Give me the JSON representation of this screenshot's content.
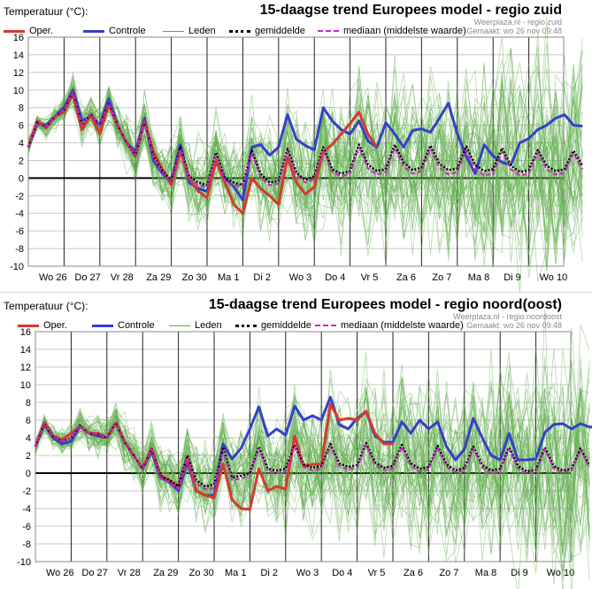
{
  "colors": {
    "oper": "#d43a2f",
    "controle": "#3540c8",
    "leden": "#5aaa48",
    "mean": "#000000",
    "median": "#cc22cc",
    "grid": "#c8c8c8"
  },
  "chart_data": [
    {
      "type": "line",
      "title": "15-daagse trend Europees model - regio zuid",
      "site": "Weerplaza.nl - regio zuid",
      "generated": "Gemaakt: wo 26 nov 09:48",
      "ylabel": "Temperatuur (°C):",
      "ylim": [
        -10,
        16
      ],
      "yticks": [
        -10,
        -8,
        -6,
        -4,
        -2,
        0,
        2,
        4,
        6,
        8,
        10,
        12,
        14,
        16
      ],
      "grid": true,
      "legend_position": "top",
      "legend": [
        "Oper.",
        "Controle",
        "Leden",
        "gemiddelde",
        "mediaan (middelste waarde)"
      ],
      "xticks": [
        "Wo 26",
        "Do 27",
        "Vr 28",
        "Za 29",
        "Zo 30",
        "Ma 1",
        "Di 2",
        "Wo 3",
        "Do 4",
        "Vr 5",
        "Za 6",
        "Zo 7",
        "Ma 8",
        "Di 9",
        "Wo 10"
      ],
      "x_step_hours": 6,
      "series": [
        {
          "name": "Oper.",
          "values": [
            3.5,
            6.5,
            5.7,
            7,
            7.5,
            9.5,
            5.5,
            7.2,
            5,
            8.3,
            6,
            4,
            2.5,
            6.5,
            3,
            1,
            -0.8,
            3,
            0,
            -1.5,
            -2.2,
            2,
            -0.5,
            -3,
            -4,
            0,
            -1.2,
            -2,
            -3,
            2.3,
            -0.5,
            -1.8,
            -1,
            3,
            3.8,
            5,
            6.2,
            7.5,
            5,
            3.5
          ]
        },
        {
          "name": "Controle",
          "values": [
            3.5,
            6.2,
            6,
            7,
            8,
            10,
            6.5,
            7,
            6,
            9,
            6,
            4,
            3,
            6.8,
            2,
            0.5,
            -0.5,
            3.8,
            -0.5,
            -1.2,
            -1.5,
            1.8,
            0,
            -1,
            -2.5,
            3.5,
            3.8,
            2.6,
            3.5,
            7.2,
            4.4,
            3.7,
            3.2,
            8,
            6.5,
            5.5,
            5,
            6.5,
            4.2,
            3.5,
            6.3,
            5,
            3.5,
            5.4,
            5.6,
            5.2,
            6.8,
            8.5,
            5,
            2.5,
            0.5,
            3.8,
            2.5,
            1.8,
            1.5,
            4,
            4.5,
            5.5,
            6,
            6.8,
            7.2,
            6,
            5.9
          ]
        },
        {
          "name": "gemiddelde",
          "values": [
            3.5,
            6.3,
            5.8,
            7,
            7.8,
            9.8,
            6,
            7.3,
            6,
            8.5,
            6,
            4,
            2.5,
            6.4,
            2.5,
            0.8,
            -0.3,
            3.5,
            0.2,
            -0.5,
            -0.8,
            2.9,
            0,
            -0.5,
            -0.8,
            3.1,
            0.5,
            -0.5,
            -0.3,
            3.3,
            0.6,
            -0.2,
            0.2,
            3.5,
            1,
            0.5,
            0.8,
            3.8,
            1.5,
            0.8,
            1,
            3.8,
            1.8,
            0.9,
            1.2,
            3.7,
            1.6,
            0.9,
            1.1,
            3.6,
            1.5,
            0.8,
            1,
            3.4,
            1.4,
            0.7,
            0.9,
            3.2,
            1.4,
            0.8,
            1,
            3.1,
            1.4
          ]
        },
        {
          "name": "mediaan (middelste waarde)",
          "values": [
            3.5,
            6.3,
            5.8,
            7,
            7.8,
            9.8,
            6,
            7.3,
            6,
            8.5,
            6,
            4,
            2.5,
            6.4,
            2.3,
            0.6,
            -0.5,
            3.3,
            0,
            -0.8,
            -1,
            2.6,
            -0.3,
            -0.8,
            -1,
            2.8,
            0.1,
            -0.8,
            -0.6,
            3,
            0.3,
            -0.5,
            -0.1,
            3.2,
            0.7,
            0.2,
            0.5,
            3.5,
            1.1,
            0.4,
            0.7,
            3.4,
            1.3,
            0.5,
            0.8,
            3.3,
            1.2,
            0.4,
            0.7,
            3.2,
            1.1,
            0.3,
            0.5,
            3,
            1,
            0.3,
            0.5,
            2.9,
            1,
            0.4,
            0.6,
            2.8,
            1
          ]
        }
      ]
    },
    {
      "type": "line",
      "title": "15-daagse trend Europees model - regio noord(oost)",
      "site": "Weerplaza.nl - regio noordoost",
      "generated": "Gemaakt: wo 26 nov 09:48",
      "ylabel": "Temperatuur (°C):",
      "ylim": [
        -10,
        16
      ],
      "yticks": [
        -10,
        -8,
        -6,
        -4,
        -2,
        0,
        2,
        4,
        6,
        8,
        10,
        12,
        14,
        16
      ],
      "grid": true,
      "legend_position": "top",
      "legend": [
        "Oper.",
        "Controle",
        "Leden",
        "gemiddelde",
        "mediaan (middelste waarde)"
      ],
      "xticks": [
        "Wo 26",
        "Do 27",
        "Vr 28",
        "Za 29",
        "Zo 30",
        "Ma 1",
        "Di 2",
        "Wo 3",
        "Do 4",
        "Vr 5",
        "Za 6",
        "Zo 7",
        "Ma 8",
        "Di 9",
        "Wo 10"
      ],
      "x_step_hours": 6,
      "series": [
        {
          "name": "Oper.",
          "values": [
            3,
            5.7,
            4.2,
            3.8,
            4.5,
            5.3,
            4.5,
            4.5,
            4,
            5.7,
            3.5,
            2,
            0.5,
            2.8,
            -0.3,
            -0.8,
            -1.5,
            1.8,
            -2,
            -2.5,
            -2.8,
            1,
            -3,
            -4,
            -4.1,
            0.5,
            -2,
            -1.5,
            -1.8,
            4.2,
            0.8,
            1,
            1,
            7.8,
            6,
            6.2,
            6,
            7,
            4.5,
            3.3,
            3.3
          ]
        },
        {
          "name": "Controle",
          "values": [
            3,
            5.5,
            4,
            3.3,
            3.6,
            5.3,
            4.5,
            4.2,
            4,
            5.7,
            3.5,
            2,
            0.5,
            2.5,
            -0.5,
            -1,
            -2,
            1.2,
            -2,
            -2.5,
            -2.5,
            3.3,
            1.6,
            2.8,
            5,
            7.5,
            4.2,
            5,
            4.3,
            7.6,
            6,
            6.5,
            6,
            8.6,
            5.5,
            5,
            6.2,
            7,
            4.2,
            3.5,
            3.5,
            5.8,
            4.5,
            6,
            5,
            5.8,
            3,
            1.5,
            2.7,
            6.2,
            4,
            2,
            1.5,
            4.5,
            1.5,
            1.5,
            1.6,
            4.6,
            5.5,
            5.6,
            5,
            5.6,
            5.2,
            5.3
          ]
        },
        {
          "name": "gemiddelde",
          "values": [
            3,
            5.6,
            4.1,
            3.6,
            4,
            5.4,
            4.5,
            4.4,
            4,
            5.7,
            3.5,
            2,
            0.5,
            2.7,
            -0.3,
            -0.8,
            -1.5,
            2,
            -0.8,
            -1.5,
            -1.3,
            2.9,
            -0.5,
            -0.3,
            0,
            3,
            0.5,
            0.3,
            0.5,
            3.2,
            1,
            0.6,
            0.8,
            3.3,
            1.1,
            0.7,
            0.9,
            3.4,
            1.2,
            0.6,
            0.8,
            3.2,
            1.1,
            0.5,
            0.7,
            3.1,
            1,
            0.3,
            0.6,
            3,
            0.9,
            0.3,
            0.5,
            2.9,
            0.8,
            0.2,
            0.4,
            2.9,
            0.8,
            0.3,
            0.5,
            2.8,
            0.8
          ]
        },
        {
          "name": "mediaan (middelste waarde)",
          "values": [
            3,
            5.6,
            4.1,
            3.6,
            4,
            5.4,
            4.5,
            4.4,
            4,
            5.7,
            3.5,
            2,
            0.5,
            2.7,
            -0.5,
            -1,
            -1.8,
            1.8,
            -1.2,
            -1.8,
            -1.7,
            2.6,
            -0.8,
            -0.6,
            -0.3,
            2.8,
            0.2,
            0,
            0.2,
            3,
            0.7,
            0.3,
            0.5,
            3.1,
            0.8,
            0.4,
            0.6,
            3.2,
            0.9,
            0.3,
            0.5,
            3,
            0.8,
            0.2,
            0.4,
            2.9,
            0.7,
            0.1,
            0.3,
            2.8,
            0.6,
            0,
            0.2,
            2.7,
            0.5,
            0,
            0.2,
            2.7,
            0.5,
            0.1,
            0.3,
            2.6,
            0.6
          ]
        }
      ]
    }
  ]
}
